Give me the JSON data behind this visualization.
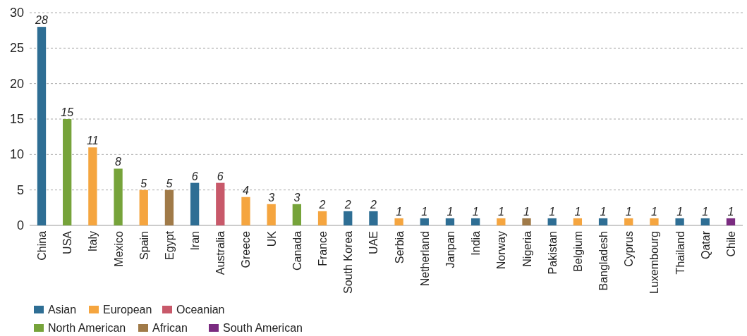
{
  "chart_data": {
    "type": "bar",
    "stacked": true,
    "data_labels": true,
    "grid": "y",
    "legend": "bottom left",
    "categories": [
      "China",
      "USA",
      "Italy",
      "Mexico",
      "Spain",
      "Egypt",
      "Iran",
      "Australia",
      "Greece",
      "UK",
      "Canada",
      "France",
      "South Korea",
      "UAE",
      "Serbia",
      "Netherland",
      "Janpan",
      "India",
      "Norway",
      "Nigeria",
      "Pakistan",
      "Belgium",
      "Bangladesh",
      "Cyprus",
      "Luxembourg",
      "Thailand",
      "Qatar",
      "Chile"
    ],
    "ylim": [
      0,
      30
    ],
    "yticks": [
      0,
      5,
      10,
      15,
      20,
      25,
      30
    ],
    "series": [
      {
        "name": "Asian",
        "color": "#2e6e94",
        "values": [
          28,
          null,
          null,
          null,
          null,
          null,
          6,
          null,
          null,
          null,
          null,
          null,
          2,
          2,
          null,
          1,
          1,
          1,
          null,
          null,
          1,
          null,
          1,
          null,
          null,
          1,
          1,
          null
        ]
      },
      {
        "name": "European",
        "color": "#f5a53f",
        "values": [
          null,
          null,
          11,
          null,
          5,
          null,
          null,
          null,
          4,
          3,
          null,
          2,
          null,
          null,
          1,
          null,
          null,
          null,
          1,
          null,
          null,
          1,
          null,
          1,
          1,
          null,
          null,
          null
        ]
      },
      {
        "name": "Oceanian",
        "color": "#c8596a",
        "values": [
          null,
          null,
          null,
          null,
          null,
          null,
          null,
          6,
          null,
          null,
          null,
          null,
          null,
          null,
          null,
          null,
          null,
          null,
          null,
          null,
          null,
          null,
          null,
          null,
          null,
          null,
          null,
          null
        ]
      },
      {
        "name": "North American",
        "color": "#76a33a",
        "values": [
          null,
          15,
          null,
          8,
          null,
          null,
          null,
          null,
          null,
          null,
          3,
          null,
          null,
          null,
          null,
          null,
          null,
          null,
          null,
          null,
          null,
          null,
          null,
          null,
          null,
          null,
          null,
          null
        ]
      },
      {
        "name": "African",
        "color": "#a07a48",
        "values": [
          null,
          null,
          null,
          null,
          null,
          5,
          null,
          null,
          null,
          null,
          null,
          null,
          null,
          null,
          null,
          null,
          null,
          null,
          null,
          1,
          null,
          null,
          null,
          null,
          null,
          null,
          null,
          null
        ]
      },
      {
        "name": "South American",
        "color": "#7a2b80",
        "values": [
          null,
          null,
          null,
          null,
          null,
          null,
          null,
          null,
          null,
          null,
          null,
          null,
          null,
          null,
          null,
          null,
          null,
          null,
          null,
          null,
          null,
          null,
          null,
          null,
          null,
          null,
          null,
          1
        ]
      }
    ]
  }
}
